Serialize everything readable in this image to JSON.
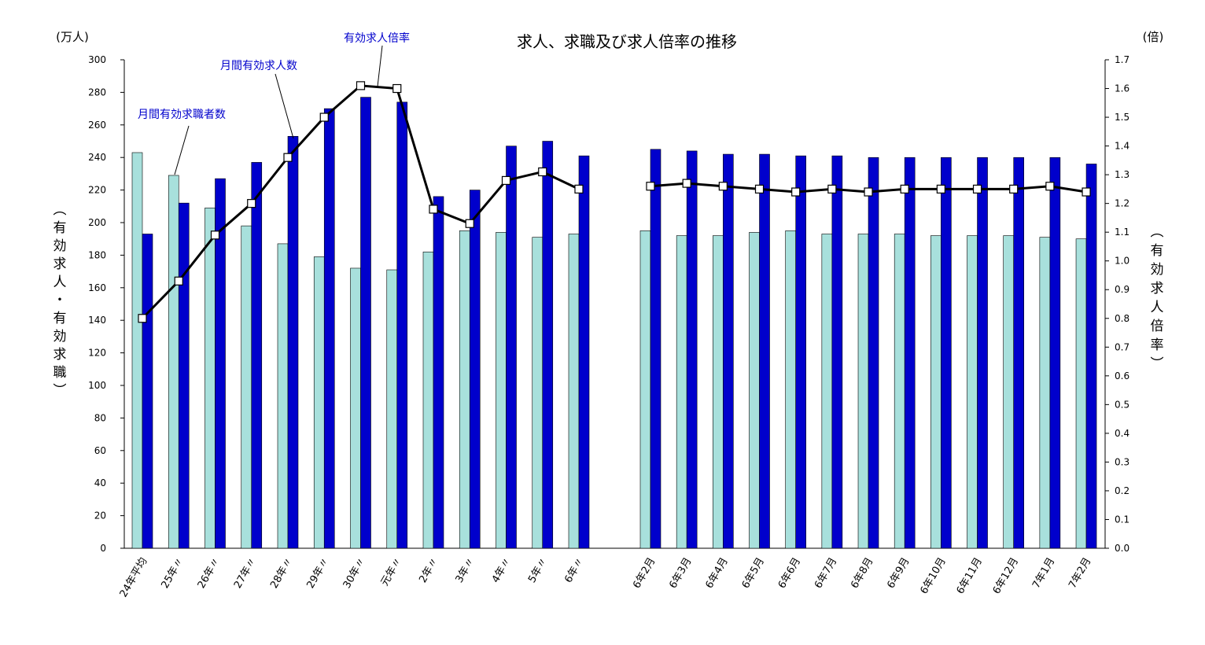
{
  "chart_data": {
    "type": "bar",
    "title": "求人、求職及び求人倍率の推移",
    "left_unit": "(万人)",
    "right_unit": "(倍)",
    "left_axis_label": "(有効求人・有効求職)",
    "right_axis_label": "(有効求人倍率)",
    "left_ylim": [
      0,
      300
    ],
    "left_ticks": [
      "0",
      "20",
      "40",
      "60",
      "80",
      "100",
      "120",
      "140",
      "160",
      "180",
      "200",
      "220",
      "240",
      "260",
      "280",
      "300"
    ],
    "right_ylim": [
      0,
      1.7
    ],
    "right_ticks": [
      "0.0",
      "0.1",
      "0.2",
      "0.3",
      "0.4",
      "0.5",
      "0.6",
      "0.7",
      "0.8",
      "0.9",
      "1.0",
      "1.1",
      "1.2",
      "1.3",
      "1.4",
      "1.5",
      "1.6",
      "1.7"
    ],
    "grid": false,
    "categories_annual": [
      "24年平均",
      "25年〃",
      "26年〃",
      "27年〃",
      "28年〃",
      "29年〃",
      "30年〃",
      "元年〃",
      "2年〃",
      "3年〃",
      "4年〃",
      "5年〃",
      "6年〃"
    ],
    "categories_monthly": [
      "6年2月",
      "6年3月",
      "6年4月",
      "6年5月",
      "6年6月",
      "6年7月",
      "6年8月",
      "6年9月",
      "6年10月",
      "6年11月",
      "6年12月",
      "7年1月",
      "7年2月"
    ],
    "series": [
      {
        "name": "月間有効求職者数",
        "axis": "left",
        "color": "#a8e0dc",
        "annual": [
          243,
          229,
          209,
          198,
          187,
          179,
          172,
          171,
          182,
          195,
          194,
          191,
          193
        ],
        "monthly": [
          195,
          192,
          192,
          194,
          195,
          193,
          193,
          193,
          192,
          192,
          192,
          191,
          190
        ]
      },
      {
        "name": "月間有効求人数",
        "axis": "left",
        "color": "#0000cc",
        "annual": [
          193,
          212,
          227,
          237,
          253,
          270,
          277,
          274,
          216,
          220,
          247,
          250,
          241
        ],
        "monthly": [
          245,
          244,
          242,
          242,
          241,
          241,
          240,
          240,
          240,
          240,
          240,
          240,
          236
        ]
      },
      {
        "name": "有効求人倍率",
        "axis": "right",
        "type": "line",
        "color": "#000000",
        "annual": [
          0.8,
          0.93,
          1.09,
          1.2,
          1.36,
          1.5,
          1.61,
          1.6,
          1.18,
          1.13,
          1.28,
          1.31,
          1.25
        ],
        "monthly": [
          1.26,
          1.27,
          1.26,
          1.25,
          1.24,
          1.25,
          1.24,
          1.25,
          1.25,
          1.25,
          1.25,
          1.26,
          1.24
        ]
      }
    ]
  }
}
